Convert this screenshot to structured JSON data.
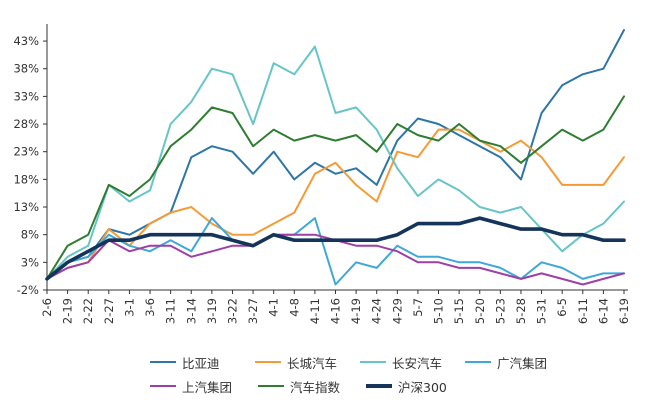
{
  "chart_data": {
    "type": "line",
    "title": "",
    "xlabel": "",
    "ylabel": "",
    "ylim": [
      -2,
      45
    ],
    "yticks": [
      -2,
      3,
      8,
      13,
      18,
      23,
      28,
      33,
      38,
      43
    ],
    "ytick_labels": [
      "-2%",
      "3%",
      "8%",
      "13%",
      "18%",
      "23%",
      "28%",
      "33%",
      "38%",
      "43%"
    ],
    "categories": [
      "2-6",
      "2-19",
      "2-22",
      "2-27",
      "3-1",
      "3-6",
      "3-11",
      "3-14",
      "3-19",
      "3-22",
      "3-27",
      "4-1",
      "4-8",
      "4-11",
      "4-16",
      "4-19",
      "4-24",
      "4-29",
      "5-7",
      "5-10",
      "5-15",
      "5-20",
      "5-23",
      "5-28",
      "5-31",
      "6-5",
      "6-11",
      "6-14",
      "6-19"
    ],
    "grid": false,
    "legend_position": "bottom",
    "series": [
      {
        "name": "比亚迪",
        "color": "#2E75A8",
        "width": 2,
        "values": [
          0,
          3,
          4,
          9,
          8,
          10,
          12,
          22,
          24,
          23,
          19,
          23,
          18,
          21,
          19,
          20,
          17,
          25,
          29,
          28,
          26,
          24,
          22,
          18,
          30,
          35,
          37,
          38,
          45
        ]
      },
      {
        "name": "长城汽车",
        "color": "#F59B35",
        "width": 2,
        "values": [
          0,
          2,
          3,
          9,
          6,
          10,
          12,
          13,
          10,
          8,
          8,
          10,
          12,
          19,
          21,
          17,
          14,
          23,
          22,
          27,
          27,
          25,
          23,
          25,
          22,
          17,
          17,
          17,
          22
        ]
      },
      {
        "name": "长安汽车",
        "color": "#67C5C7",
        "width": 2,
        "values": [
          0,
          4,
          6,
          17,
          14,
          16,
          28,
          32,
          38,
          37,
          28,
          39,
          37,
          42,
          30,
          31,
          27,
          20,
          15,
          18,
          16,
          13,
          12,
          13,
          9,
          5,
          8,
          10,
          14
        ]
      },
      {
        "name": "广汽集团",
        "color": "#3FA8D8",
        "width": 2,
        "values": [
          0,
          3,
          4,
          8,
          6,
          5,
          7,
          5,
          11,
          7,
          6,
          8,
          8,
          11,
          -1,
          3,
          2,
          6,
          4,
          4,
          3,
          3,
          2,
          0,
          3,
          2,
          0,
          1,
          1
        ]
      },
      {
        "name": "上汽集团",
        "color": "#9E3FA5",
        "width": 2,
        "values": [
          0,
          2,
          3,
          7,
          5,
          6,
          6,
          4,
          5,
          6,
          6,
          8,
          8,
          8,
          7,
          6,
          6,
          5,
          3,
          3,
          2,
          2,
          1,
          0,
          1,
          0,
          -1,
          0,
          1
        ]
      },
      {
        "name": "汽车指数",
        "color": "#2E7D32",
        "width": 2,
        "values": [
          0,
          6,
          8,
          17,
          15,
          18,
          24,
          27,
          31,
          30,
          24,
          27,
          25,
          26,
          25,
          26,
          23,
          28,
          26,
          25,
          28,
          25,
          24,
          21,
          24,
          27,
          25,
          27,
          33
        ]
      },
      {
        "name": "沪深300",
        "color": "#14345A",
        "width": 3.6,
        "values": [
          0,
          3,
          5,
          7,
          7,
          8,
          8,
          8,
          8,
          7,
          6,
          8,
          7,
          7,
          7,
          7,
          7,
          8,
          10,
          10,
          10,
          11,
          10,
          9,
          9,
          8,
          8,
          7,
          7
        ]
      }
    ]
  }
}
